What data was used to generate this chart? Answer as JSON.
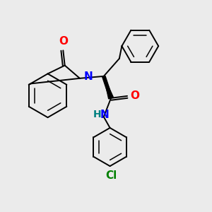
{
  "bg_color": "#ebebeb",
  "bond_color": "#000000",
  "bond_lw": 1.4,
  "aromatic_lw": 1.1,
  "atom_colors": {
    "O": "#ff0000",
    "N": "#0000ff",
    "Cl": "#008000",
    "H": "#008080",
    "C": "#000000"
  },
  "font_size": 10,
  "fig_size": [
    3.0,
    3.0
  ],
  "dpi": 100
}
